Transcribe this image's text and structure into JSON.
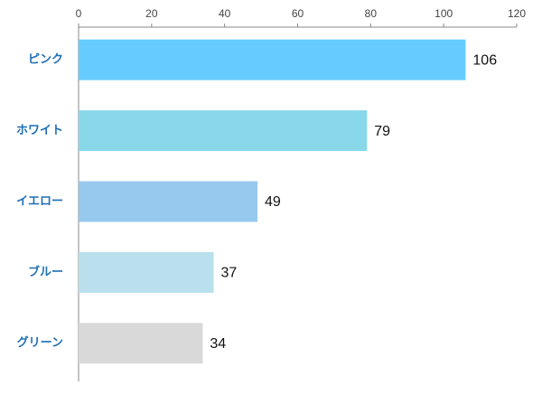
{
  "chart_data": {
    "type": "bar",
    "orientation": "horizontal",
    "categories": [
      "ピンク",
      "ホワイト",
      "イエロー",
      "ブルー",
      "グリーン"
    ],
    "values": [
      106,
      79,
      49,
      37,
      34
    ],
    "colors": [
      "#66ccff",
      "#88d8ea",
      "#97c8ee",
      "#b9e0ec",
      "#d9d9d9"
    ],
    "xlim": [
      0,
      120
    ],
    "xticks": [
      0,
      20,
      40,
      60,
      80,
      100,
      120
    ],
    "grid": false
  }
}
